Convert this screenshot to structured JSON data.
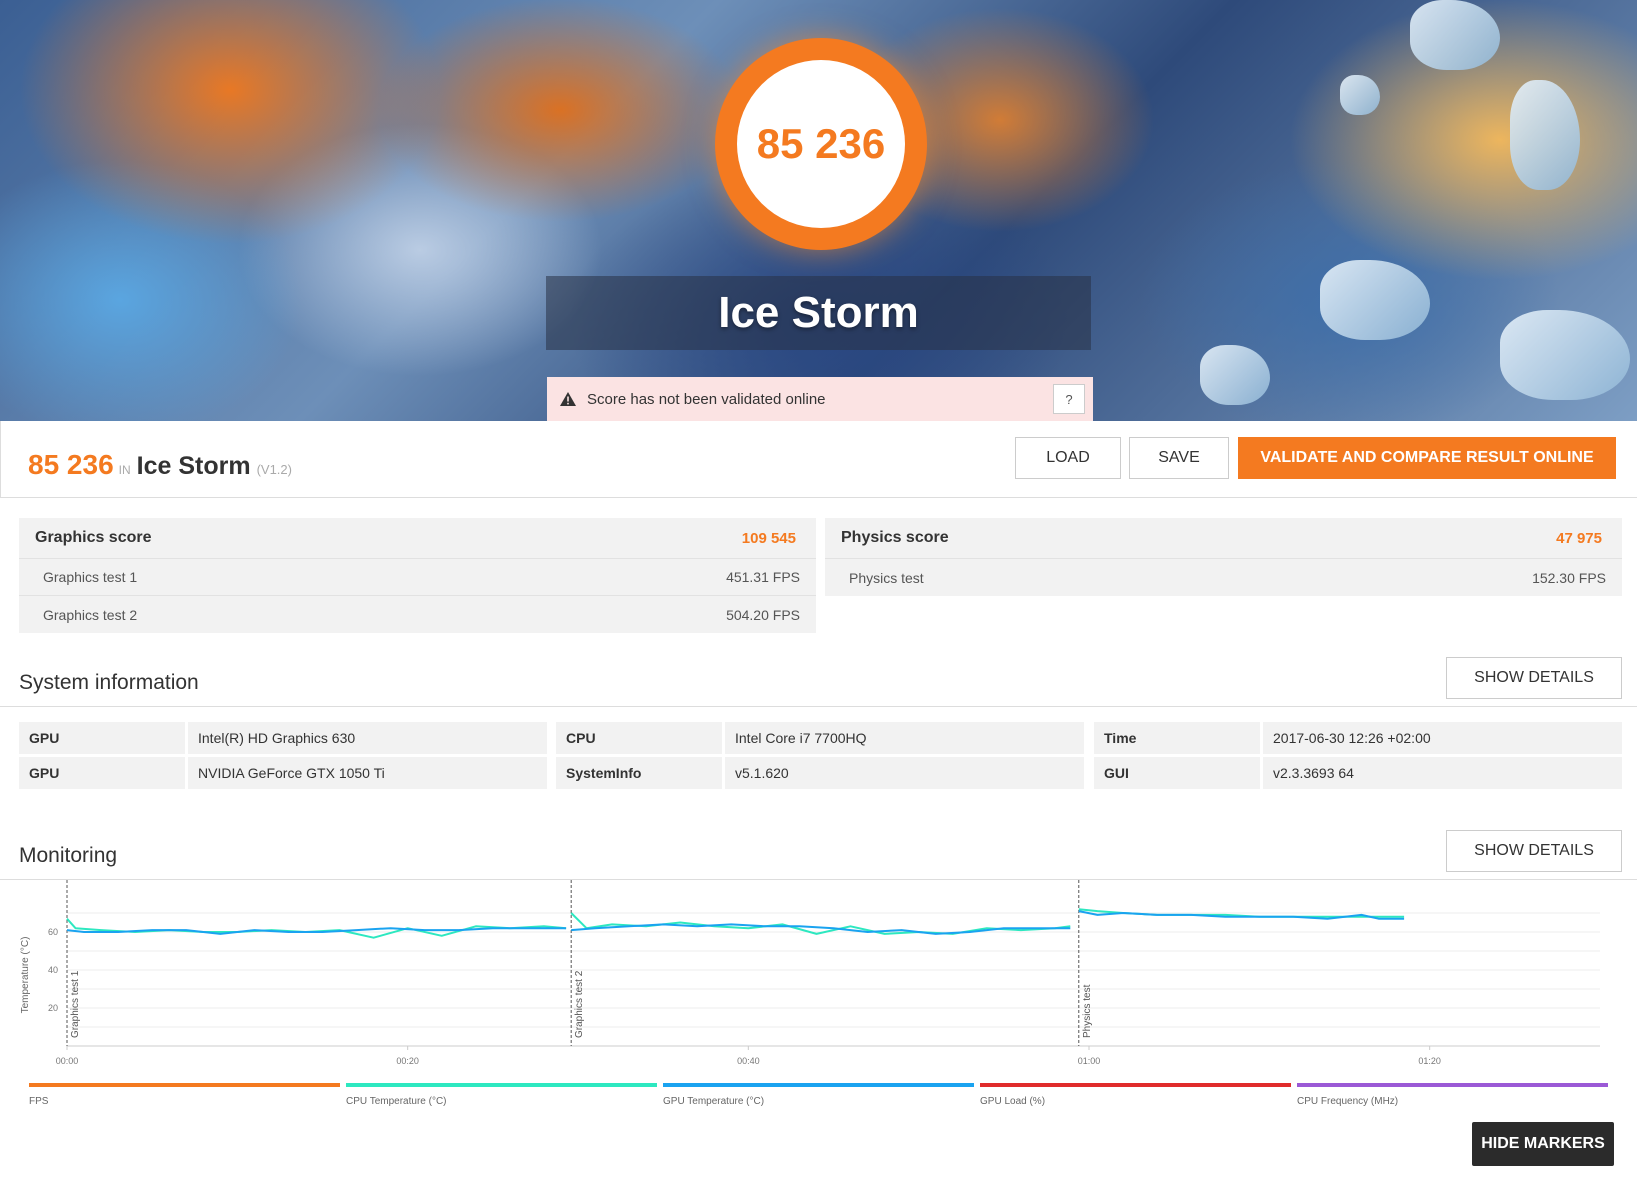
{
  "hero": {
    "score": "85 236",
    "title": "Ice Storm",
    "alert_text": "Score has not been validated online",
    "help_label": "?"
  },
  "result": {
    "score": "85 236",
    "in_label": "IN",
    "name": "Ice Storm",
    "version": "(V1.2)",
    "load_label": "LOAD",
    "save_label": "SAVE",
    "validate_label": "VALIDATE AND COMPARE RESULT ONLINE"
  },
  "graphics": {
    "label": "Graphics score",
    "value": "109 545",
    "tests": [
      {
        "name": "Graphics test 1",
        "value": "451.31 FPS"
      },
      {
        "name": "Graphics test 2",
        "value": "504.20 FPS"
      }
    ]
  },
  "physics": {
    "label": "Physics score",
    "value": "47 975",
    "tests": [
      {
        "name": "Physics test",
        "value": "152.30 FPS"
      }
    ]
  },
  "system_info": {
    "title": "System information",
    "show_details_label": "SHOW DETAILS",
    "rows": [
      [
        {
          "k": "GPU",
          "v": "Intel(R) HD Graphics 630"
        },
        {
          "k": "CPU",
          "v": "Intel Core i7 7700HQ"
        },
        {
          "k": "Time",
          "v": "2017-06-30 12:26 +02:00"
        }
      ],
      [
        {
          "k": "GPU",
          "v": "NVIDIA GeForce GTX 1050 Ti"
        },
        {
          "k": "SystemInfo",
          "v": "v5.1.620"
        },
        {
          "k": "GUI",
          "v": "v2.3.3693 64"
        }
      ]
    ]
  },
  "monitoring": {
    "title": "Monitoring",
    "show_details_label": "SHOW DETAILS",
    "hide_markers_label": "HIDE MARKERS",
    "legend": [
      {
        "name": "FPS",
        "color": "#f47a20"
      },
      {
        "name": "CPU Temperature (°C)",
        "color": "#2de8c0"
      },
      {
        "name": "GPU Temperature (°C)",
        "color": "#1aa3f0"
      },
      {
        "name": "GPU Load (%)",
        "color": "#e02b2b"
      },
      {
        "name": "CPU Frequency (MHz)",
        "color": "#9b59d6"
      }
    ]
  },
  "chart_data": {
    "type": "line",
    "ylabel": "Temperature (°C)",
    "yticks": [
      20,
      40,
      60
    ],
    "ylim": [
      0,
      80
    ],
    "xlim": [
      0,
      90
    ],
    "xticks": [
      "00:00",
      "00:20",
      "00:40",
      "01:00",
      "01:20"
    ],
    "xtick_values": [
      0,
      20,
      40,
      60,
      80
    ],
    "markers": [
      {
        "label": "Graphics test 1",
        "x": 0
      },
      {
        "label": "Graphics test 2",
        "x": 29.6
      },
      {
        "label": "Physics test",
        "x": 59.4
      }
    ],
    "series": [
      {
        "name": "CPU Temperature (°C)",
        "color": "#2de8c0",
        "segments": [
          {
            "x": [
              0,
              0.5,
              2,
              4,
              6,
              8,
              10,
              12,
              14,
              16,
              18,
              20,
              22,
              24,
              26,
              28,
              29.3
            ],
            "y": [
              67,
              62,
              61,
              60,
              61,
              60,
              60,
              61,
              60,
              61,
              57,
              62,
              58,
              63,
              62,
              63,
              62
            ]
          },
          {
            "x": [
              29.6,
              30.5,
              32,
              34,
              36,
              38,
              40,
              42,
              44,
              46,
              48,
              50,
              52,
              54,
              56,
              58,
              58.9
            ],
            "y": [
              70,
              62,
              64,
              63,
              65,
              63,
              62,
              64,
              59,
              63,
              59,
              60,
              59,
              62,
              61,
              62,
              63
            ]
          },
          {
            "x": [
              59.4,
              60.5,
              62,
              64,
              66,
              68,
              70,
              72,
              74,
              76,
              78.5
            ],
            "y": [
              72,
              71,
              70,
              69,
              69,
              69,
              68,
              68,
              68,
              68,
              68
            ]
          }
        ]
      },
      {
        "name": "GPU Temperature (°C)",
        "color": "#1aa3f0",
        "segments": [
          {
            "x": [
              0,
              1,
              3,
              5,
              7,
              9,
              11,
              13,
              15,
              17,
              19,
              21,
              23,
              25,
              27,
              29.3
            ],
            "y": [
              61,
              60,
              60,
              61,
              61,
              59,
              61,
              60,
              60,
              61,
              62,
              61,
              61,
              62,
              62,
              62
            ]
          },
          {
            "x": [
              29.6,
              31,
              33,
              35,
              37,
              39,
              41,
              43,
              45,
              47,
              49,
              51,
              53,
              55,
              57,
              58.9
            ],
            "y": [
              61,
              62,
              63,
              64,
              63,
              64,
              63,
              63,
              62,
              60,
              61,
              59,
              60,
              62,
              62,
              62
            ]
          },
          {
            "x": [
              59.4,
              60.5,
              62,
              64,
              66,
              68,
              70,
              72,
              74,
              76,
              77,
              78.5
            ],
            "y": [
              71,
              69,
              70,
              69,
              69,
              68,
              68,
              68,
              67,
              69,
              67,
              67
            ]
          }
        ]
      }
    ]
  }
}
